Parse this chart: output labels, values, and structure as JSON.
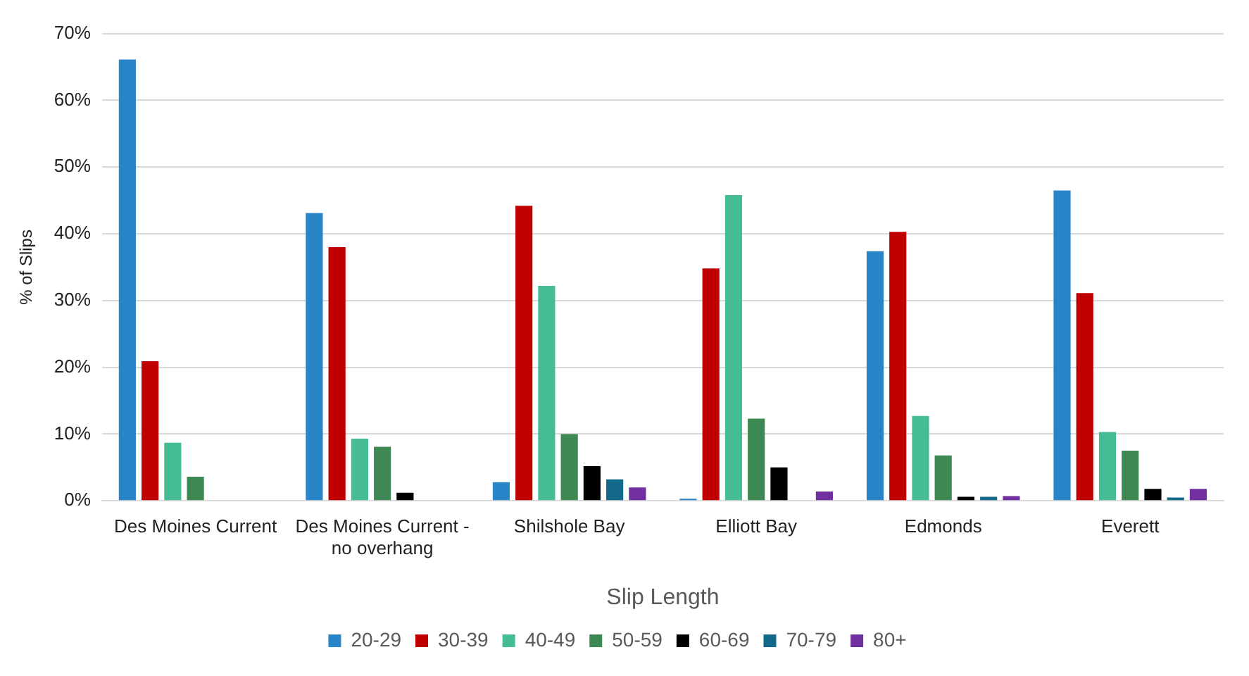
{
  "chart_data": {
    "type": "bar",
    "xlabel": "Slip Length",
    "ylabel": "% of Slips",
    "categories": [
      "Des Moines Current",
      "Des Moines Current - no overhang",
      "Shilshole Bay",
      "Elliott Bay",
      "Edmonds",
      "Everett"
    ],
    "series": [
      {
        "name": "20-29",
        "color": "#2a84c8",
        "values": [
          66.1,
          43.1,
          2.8,
          0.3,
          37.4,
          46.5
        ]
      },
      {
        "name": "30-39",
        "color": "#c00000",
        "values": [
          20.9,
          38.0,
          44.2,
          34.8,
          40.3,
          31.1
        ]
      },
      {
        "name": "40-49",
        "color": "#45bb96",
        "values": [
          8.7,
          9.3,
          32.2,
          45.8,
          12.7,
          10.3
        ]
      },
      {
        "name": "50-59",
        "color": "#3e8853",
        "values": [
          3.6,
          8.1,
          10.0,
          12.3,
          6.8,
          7.5
        ]
      },
      {
        "name": "60-69",
        "color": "#000000",
        "values": [
          0,
          1.2,
          5.2,
          5.0,
          0.6,
          1.8
        ]
      },
      {
        "name": "70-79",
        "color": "#12698a",
        "values": [
          0,
          0,
          3.2,
          0,
          0.6,
          0.5
        ]
      },
      {
        "name": "80+",
        "color": "#7030a0",
        "values": [
          0,
          0,
          2.0,
          1.4,
          0.7,
          1.8
        ]
      }
    ],
    "ylim": [
      0,
      70
    ],
    "yticks": [
      {
        "value": 0,
        "label": "0%"
      },
      {
        "value": 10,
        "label": "10%"
      },
      {
        "value": 20,
        "label": "20%"
      },
      {
        "value": 30,
        "label": "30%"
      },
      {
        "value": 40,
        "label": "40%"
      },
      {
        "value": 50,
        "label": "50%"
      },
      {
        "value": 60,
        "label": "60%"
      },
      {
        "value": 70,
        "label": "70%"
      }
    ],
    "grid": "y",
    "legend": "bottom"
  }
}
